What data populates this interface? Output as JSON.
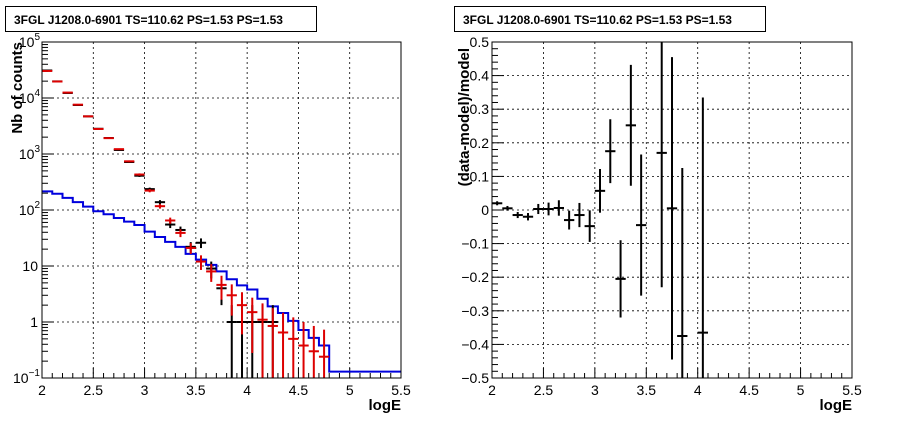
{
  "chart_data": [
    {
      "type": "step",
      "title": "3FGL J1208.0-6901 TS=110.62 PS=1.53 PS=1.53",
      "xlabel": "logE",
      "ylabel": "Nb of counts",
      "xlim": [
        2,
        5.5
      ],
      "ylim": [
        0.1,
        100000
      ],
      "yscale": "log",
      "grid": true,
      "xticks": [
        "2",
        "2.5",
        "3",
        "3.5",
        "4",
        "4.5",
        "5",
        "5.5"
      ],
      "yticks": [
        {
          "base": "10",
          "exp": "−1"
        },
        {
          "base": "1",
          "exp": ""
        },
        {
          "base": "10",
          "exp": ""
        },
        {
          "base": "10",
          "exp": "2"
        },
        {
          "base": "10",
          "exp": "3"
        },
        {
          "base": "10",
          "exp": "4"
        },
        {
          "base": "10",
          "exp": "5"
        }
      ],
      "colors": {
        "data": "#000000",
        "model": "#dd0000",
        "background": "#0000dd"
      },
      "bin_edges": [
        2.0,
        2.1,
        2.2,
        2.3,
        2.4,
        2.5,
        2.6,
        2.7,
        2.8,
        2.9,
        3.0,
        3.1,
        3.2,
        3.3,
        3.4,
        3.5,
        3.6,
        3.7,
        3.8,
        3.9,
        4.0,
        4.1,
        4.2,
        4.3,
        4.4,
        4.5,
        4.6,
        4.7,
        4.8,
        4.9,
        5.0,
        5.1,
        5.2,
        5.3,
        5.4,
        5.5
      ],
      "series": [
        {
          "role": "data",
          "x": [
            2.05,
            2.15,
            2.25,
            2.35,
            2.45,
            2.55,
            2.65,
            2.75,
            2.85,
            2.95,
            3.05,
            3.15,
            3.25,
            3.35,
            3.45,
            3.55,
            3.65,
            3.75,
            3.85,
            3.95,
            4.05,
            4.15,
            4.25,
            4.35,
            4.45,
            4.55,
            4.65
          ],
          "y": [
            31000,
            19800,
            12300,
            7500,
            4700,
            2820,
            1930,
            1180,
            720,
            410,
            236,
            138,
            55,
            44,
            22,
            26,
            9,
            4,
            1,
            1,
            1,
            1,
            1,
            0,
            0,
            0,
            0
          ],
          "yerr": [
            176,
            141,
            111,
            87,
            69,
            53,
            44,
            34,
            27,
            20,
            15,
            12,
            7.4,
            6.6,
            4.7,
            5.1,
            3,
            2,
            1,
            1,
            1,
            1,
            1,
            0,
            0,
            0,
            0
          ]
        },
        {
          "role": "model",
          "x": [
            2.05,
            2.15,
            2.25,
            2.35,
            2.45,
            2.55,
            2.65,
            2.75,
            2.85,
            2.95,
            3.05,
            3.15,
            3.25,
            3.35,
            3.45,
            3.55,
            3.65,
            3.75,
            3.85,
            3.95,
            4.05,
            4.15,
            4.25,
            4.35,
            4.45,
            4.55,
            4.65,
            4.75
          ],
          "y": [
            30400,
            19700,
            12500,
            7600,
            4700,
            2800,
            1920,
            1220,
            740,
            430,
            222,
            117,
            65,
            39,
            21,
            12,
            8,
            4.6,
            3,
            2,
            1.5,
            1.1,
            0.85,
            0.65,
            0.5,
            0.38,
            0.3,
            0.24
          ],
          "yerr": [
            174,
            140,
            112,
            87,
            69,
            53,
            44,
            35,
            27,
            21,
            15,
            11,
            8.1,
            6.2,
            4.6,
            3.5,
            2.8,
            2.1,
            1.7,
            1.4,
            1.22,
            1.05,
            0.92,
            0.81,
            0.71,
            0.62,
            0.55,
            0.49
          ]
        },
        {
          "role": "background",
          "y": [
            215,
            195,
            165,
            138,
            115,
            95,
            84,
            72,
            62,
            54,
            41,
            33,
            27,
            22,
            16.5,
            13,
            10.5,
            8,
            5.8,
            4.5,
            3.8,
            2.6,
            1.9,
            1.45,
            1.05,
            0.72,
            0.52,
            0.38,
            0.13,
            0.13,
            0.13,
            0.13,
            0.13,
            0.13,
            0.13
          ]
        }
      ]
    },
    {
      "type": "scatter",
      "title": "3FGL J1208.0-6901 TS=110.62 PS=1.53 PS=1.53",
      "xlabel": "logE",
      "ylabel": "(data-model)/model",
      "xlim": [
        2,
        5.5
      ],
      "ylim": [
        -0.5,
        0.5
      ],
      "grid": true,
      "xticks": [
        "2",
        "2.5",
        "3",
        "3.5",
        "4",
        "4.5",
        "5",
        "5.5"
      ],
      "yticks": [
        "−0.5",
        "−0.4",
        "−0.3",
        "−0.2",
        "−0.1",
        "0",
        "0.1",
        "0.2",
        "0.3",
        "0.4",
        "0.5"
      ],
      "series": [
        {
          "x": [
            2.05,
            2.15,
            2.25,
            2.35,
            2.45,
            2.55,
            2.65,
            2.75,
            2.85,
            2.95,
            3.05,
            3.15,
            3.25,
            3.35,
            3.45,
            3.65,
            3.75,
            3.85,
            4.05
          ],
          "y": [
            0.02,
            0.005,
            -0.015,
            -0.02,
            0.003,
            0.003,
            0.006,
            -0.03,
            -0.015,
            -0.048,
            0.057,
            0.175,
            -0.205,
            0.252,
            -0.045,
            0.17,
            0.005,
            -0.375,
            -0.365
          ],
          "yerr": [
            0.006,
            0.007,
            0.009,
            0.011,
            0.015,
            0.019,
            0.023,
            0.028,
            0.036,
            0.047,
            0.065,
            0.095,
            0.115,
            0.18,
            0.21,
            0.4,
            0.45,
            0.5,
            0.7
          ]
        }
      ]
    }
  ]
}
